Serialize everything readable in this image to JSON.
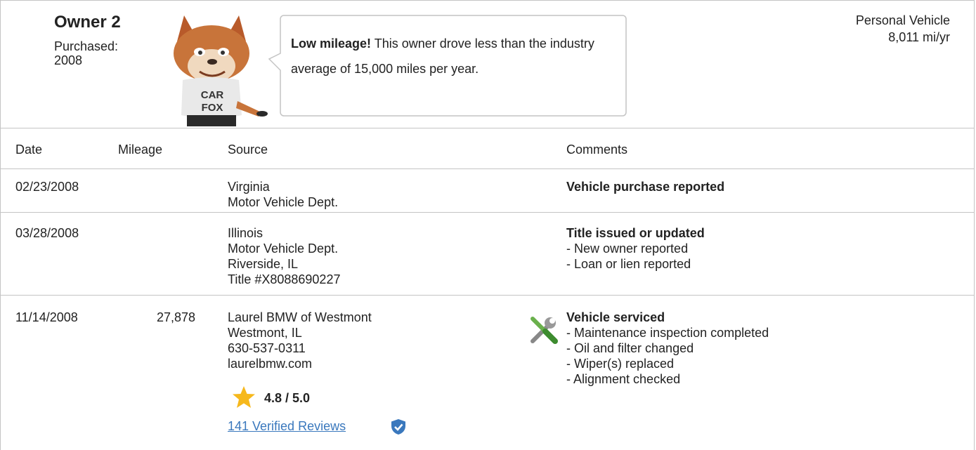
{
  "owner": {
    "title": "Owner 2",
    "purchased_label": "Purchased:",
    "purchased_year": "2008",
    "usage": "Personal Vehicle",
    "mileage_rate": "8,011 mi/yr"
  },
  "callout": {
    "bold": "Low mileage!",
    "text": "This owner drove less than the industry average of 15,000 miles per year."
  },
  "table": {
    "headers": [
      "Date",
      "Mileage",
      "Source",
      "Comments"
    ],
    "rows": [
      {
        "date": "02/23/2008",
        "source": [
          "Virginia",
          "Motor Vehicle Dept."
        ],
        "comment_title": "Vehicle purchase reported",
        "comment_items": []
      },
      {
        "date": "03/28/2008",
        "source": [
          "Illinois",
          "Motor Vehicle Dept.",
          "Riverside, IL",
          "Title #X8088690227"
        ],
        "comment_title": "Title issued or updated",
        "comment_items": [
          "- New owner reported",
          "- Loan or lien reported"
        ]
      },
      {
        "date": "11/14/2008",
        "mileage": "27,878",
        "source": [
          "Laurel BMW of Westmont",
          "Westmont, IL",
          "630-537-0311",
          "laurelbmw.com"
        ],
        "rating": "4.8 / 5.0",
        "reviews": "141 Verified Reviews",
        "comment_title": "Vehicle serviced",
        "comment_items": [
          "- Maintenance inspection completed",
          "- Oil and filter changed",
          "- Wiper(s) replaced",
          "- Alignment checked"
        ]
      }
    ]
  }
}
